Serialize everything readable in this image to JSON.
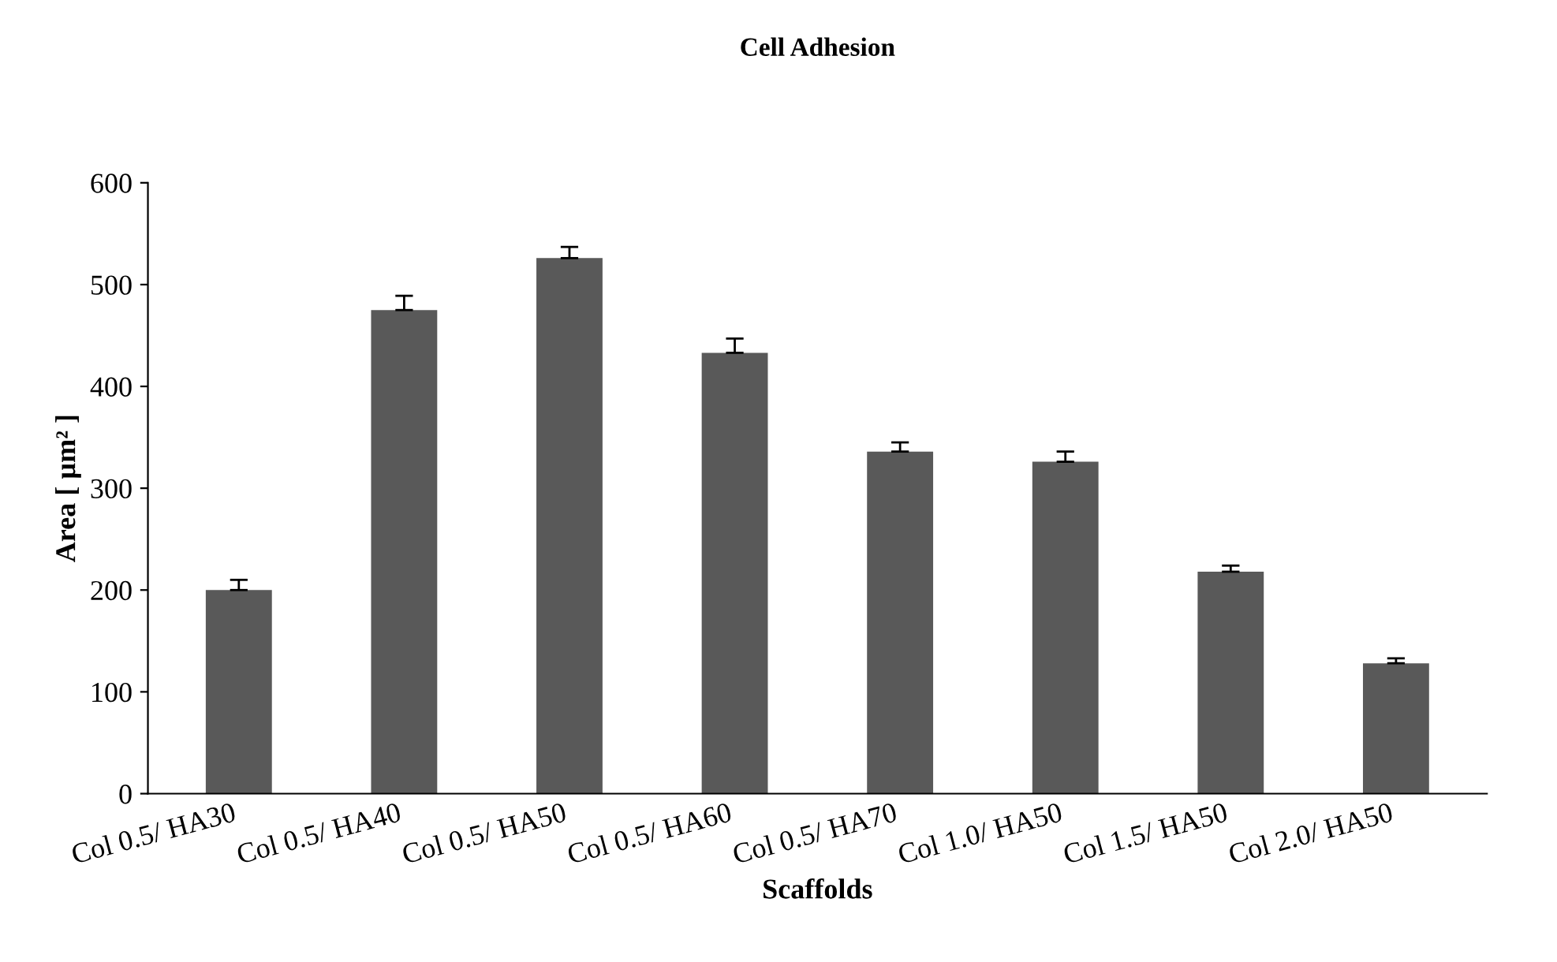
{
  "chart_data": {
    "type": "bar",
    "title": "Cell Adhesion",
    "xlabel": "Scaffolds",
    "ylabel": "Area [ µm² ]",
    "categories": [
      "Col 0.5/ HA30",
      "Col 0.5/ HA40",
      "Col 0.5/ HA50",
      "Col 0.5/ HA60",
      "Col 0.5/ HA70",
      "Col 1.0/ HA50",
      "Col 1.5/ HA50",
      "Col 2.0/ HA50"
    ],
    "values": [
      200,
      475,
      526,
      433,
      336,
      326,
      218,
      128
    ],
    "errors": [
      [
        200,
        210
      ],
      [
        475,
        489
      ],
      [
        526,
        537
      ],
      [
        433,
        447
      ],
      [
        336,
        345
      ],
      [
        326,
        336
      ],
      [
        218,
        224
      ],
      [
        128,
        133
      ]
    ],
    "color": "#595959",
    "ylim": [
      0,
      600
    ],
    "yticks": [
      0,
      100,
      200,
      300,
      400,
      500,
      600
    ],
    "grid": false,
    "legend": false
  }
}
